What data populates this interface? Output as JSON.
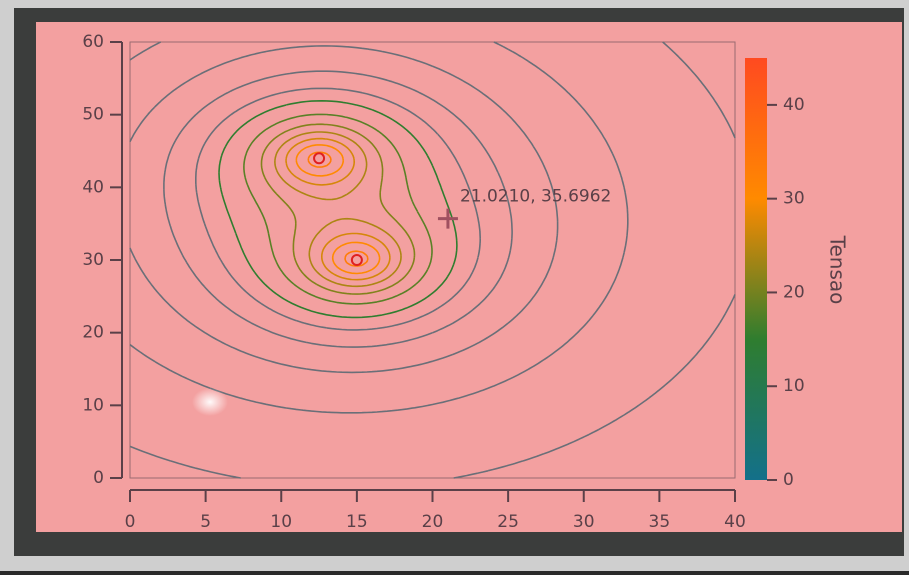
{
  "chart_data": {
    "type": "contour",
    "xlim": [
      0,
      40
    ],
    "xticks": [
      0,
      5,
      10,
      15,
      20,
      25,
      30,
      35,
      40
    ],
    "ylim": [
      0,
      60
    ],
    "yticks": [
      0,
      10,
      20,
      30,
      40,
      50,
      60
    ],
    "clim": [
      0,
      45
    ],
    "cticks": [
      0,
      10,
      20,
      30,
      40
    ],
    "colorbar_label": "Tensao",
    "colormap": [
      "#13708a",
      "#2f7d2f",
      "#ff8a00",
      "#ff4a20"
    ],
    "peaks": [
      {
        "x": 12.5,
        "y": 44,
        "value": 45
      },
      {
        "x": 15,
        "y": 30,
        "value": 45
      }
    ],
    "levels": [
      3,
      5,
      7,
      9,
      11,
      13,
      15,
      18,
      21,
      24,
      27,
      30,
      33,
      36,
      40,
      43
    ],
    "cursor": {
      "x": 21.021,
      "y": 35.6962,
      "label": "21.0210, 35.6962"
    }
  }
}
